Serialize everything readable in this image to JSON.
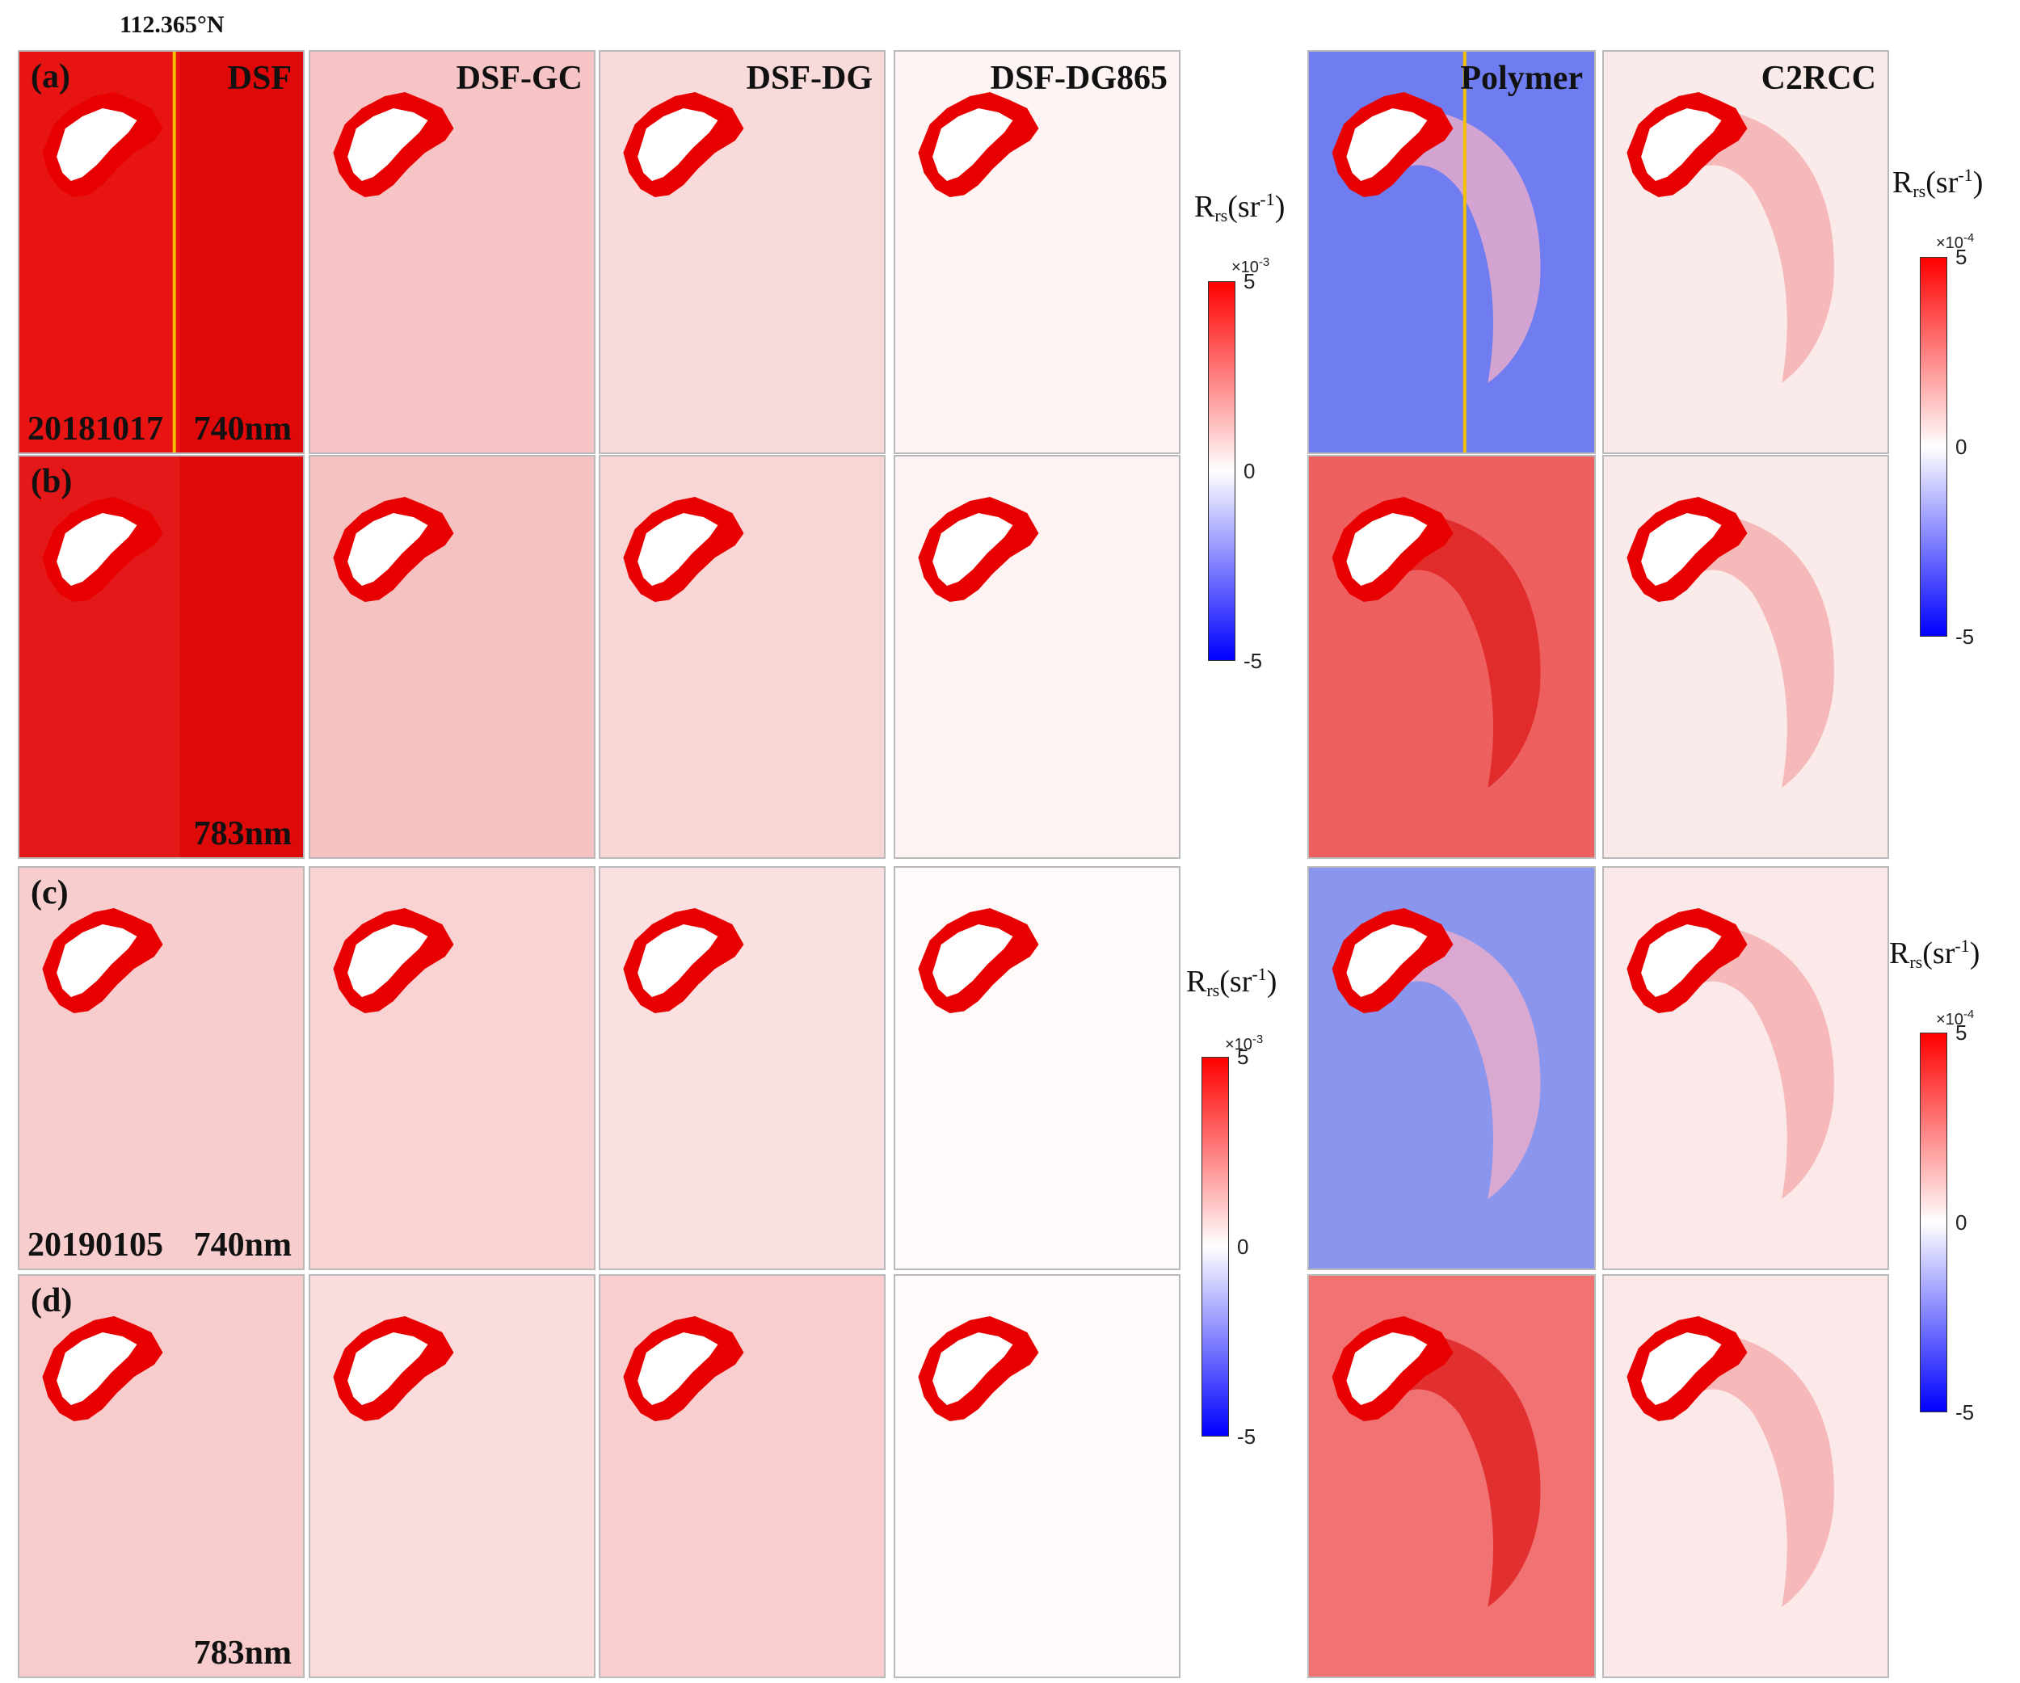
{
  "longitude_label": "112.365°N",
  "columns": [
    "DSF",
    "DSF-GC",
    "DSF-DG",
    "DSF-DG865",
    "Polymer",
    "C2RCC"
  ],
  "rows": [
    {
      "letter": "(a)",
      "date": "20181017",
      "band": "740nm"
    },
    {
      "letter": "(b)",
      "date": "",
      "band": "783nm"
    },
    {
      "letter": "(c)",
      "date": "20190105",
      "band": "740nm"
    },
    {
      "letter": "(d)",
      "date": "",
      "band": "783nm"
    }
  ],
  "colorbars": [
    {
      "title_main": "R",
      "title_sub": "rs",
      "title_unit": "(sr",
      "title_sup": "-1",
      "title_close": ")",
      "scale_base": "×10",
      "scale_exp": "-3",
      "tick_max": "5",
      "tick_mid": "0",
      "tick_min": "-5"
    },
    {
      "title_main": "R",
      "title_sub": "rs",
      "title_unit": "(sr",
      "title_sup": "-1",
      "title_close": ")",
      "scale_base": "×10",
      "scale_exp": "-4",
      "tick_max": "5",
      "tick_mid": "0",
      "tick_min": "-5"
    },
    {
      "title_main": "R",
      "title_sub": "rs",
      "title_unit": "(sr",
      "title_sup": "-1",
      "title_close": ")",
      "scale_base": "×10",
      "scale_exp": "-3",
      "tick_max": "5",
      "tick_mid": "0",
      "tick_min": "-5"
    },
    {
      "title_main": "R",
      "title_sub": "rs",
      "title_unit": "(sr",
      "title_sup": "-1",
      "title_close": ")",
      "scale_base": "×10",
      "scale_exp": "-4",
      "tick_max": "5",
      "tick_mid": "0",
      "tick_min": "-5"
    }
  ],
  "colormap": {
    "max_color": "#ff0000",
    "mid_color": "#ffffff",
    "min_color": "#0000ff"
  },
  "transect_line_color": "#f2c100",
  "panel_fills": [
    [
      "#e81414",
      "#f6c4c4",
      "#f9dada",
      "#fef4f4",
      "#6f7df0",
      "#fbeaea"
    ],
    [
      "#e41818",
      "#f5c2c2",
      "#f8d6d6",
      "#fef3f3",
      "#ee6060",
      "#fbeaea"
    ],
    [
      "#f8cdcd",
      "#f9d3d3",
      "#fae0e0",
      "#fefafa",
      "#8a95ee",
      "#fbe8e8"
    ],
    [
      "#f8cccc",
      "#fadcdc",
      "#f8cece",
      "#fffafa",
      "#f07272",
      "#fbe8e8"
    ]
  ]
}
